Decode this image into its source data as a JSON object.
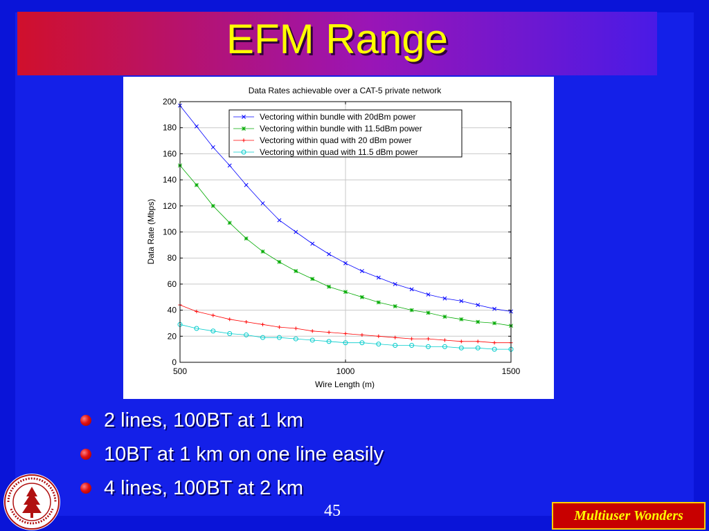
{
  "slide": {
    "title": "EFM Range",
    "bullets": [
      "2 lines, 100BT at 1 km",
      "10BT at 1 km on one line easily",
      "4 lines, 100BT at 2 km"
    ],
    "page_number": "45",
    "footer_tag": "Multiuser Wonders",
    "seal_text": "LELAND STANFORD JUNIOR UNIVERSITY · ORGANIZED 1891",
    "colors": {
      "background": "#0a14d8",
      "title_text": "#ffff00",
      "bullet_dot": "#e01010",
      "footer_bg": "#c80000",
      "footer_text": "#ffff00"
    }
  },
  "chart_data": {
    "type": "line",
    "title": "Data Rates achievable over a CAT-5 private network",
    "xlabel": "Wire Length (m)",
    "ylabel": "Data Rate (Mbps)",
    "xlim": [
      500,
      1500
    ],
    "ylim": [
      0,
      200
    ],
    "x_ticks": [
      500,
      1000,
      1500
    ],
    "y_ticks": [
      0,
      20,
      40,
      60,
      80,
      100,
      120,
      140,
      160,
      180,
      200
    ],
    "grid": true,
    "legend_position": "top-right",
    "x": [
      500,
      550,
      600,
      650,
      700,
      750,
      800,
      850,
      900,
      950,
      1000,
      1050,
      1100,
      1150,
      1200,
      1250,
      1300,
      1350,
      1400,
      1450,
      1500
    ],
    "series": [
      {
        "name": "Vectoring within bundle with 20dBm power",
        "color": "#0000ff",
        "marker": "x",
        "values": [
          197,
          181,
          165,
          151,
          136,
          122,
          109,
          100,
          91,
          83,
          76,
          70,
          65,
          60,
          56,
          52,
          49,
          47,
          44,
          41,
          39
        ]
      },
      {
        "name": "Vectoring within bundle with 11.5dBm power",
        "color": "#00aa00",
        "marker": "star",
        "values": [
          151,
          136,
          120,
          107,
          95,
          85,
          77,
          70,
          64,
          58,
          54,
          50,
          46,
          43,
          40,
          38,
          35,
          33,
          31,
          30,
          28
        ]
      },
      {
        "name": "Vectoring within quad with 20 dBm power",
        "color": "#ff0000",
        "marker": "plus",
        "values": [
          44,
          39,
          36,
          33,
          31,
          29,
          27,
          26,
          24,
          23,
          22,
          21,
          20,
          19,
          18,
          18,
          17,
          16,
          16,
          15,
          15
        ]
      },
      {
        "name": "Vectoring within quad with 11.5 dBm power",
        "color": "#00cccc",
        "marker": "circle",
        "values": [
          29,
          26,
          24,
          22,
          21,
          19,
          19,
          18,
          17,
          16,
          15,
          15,
          14,
          13,
          13,
          12,
          12,
          11,
          11,
          10,
          10
        ]
      }
    ]
  }
}
